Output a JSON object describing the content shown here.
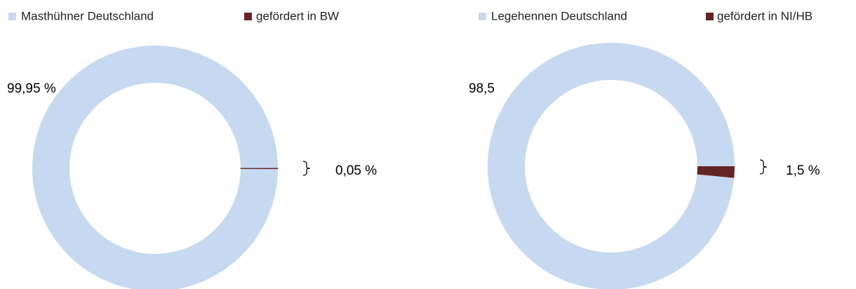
{
  "chart_data": [
    {
      "type": "donut",
      "categories": [
        "Masthühner Deutschland",
        "gefördert in BW"
      ],
      "values": [
        99.95,
        0.05
      ],
      "value_labels": [
        "99,95 %",
        "0,05 %"
      ],
      "colors": [
        "#c6d9f0",
        "#632523"
      ]
    },
    {
      "type": "donut",
      "categories": [
        "Legehennen Deutschland",
        "gefördert in NI/HB"
      ],
      "values": [
        98.5,
        1.5
      ],
      "value_labels": [
        "98,5",
        "1,5 %"
      ],
      "colors": [
        "#c6d9f0",
        "#632523"
      ]
    }
  ]
}
